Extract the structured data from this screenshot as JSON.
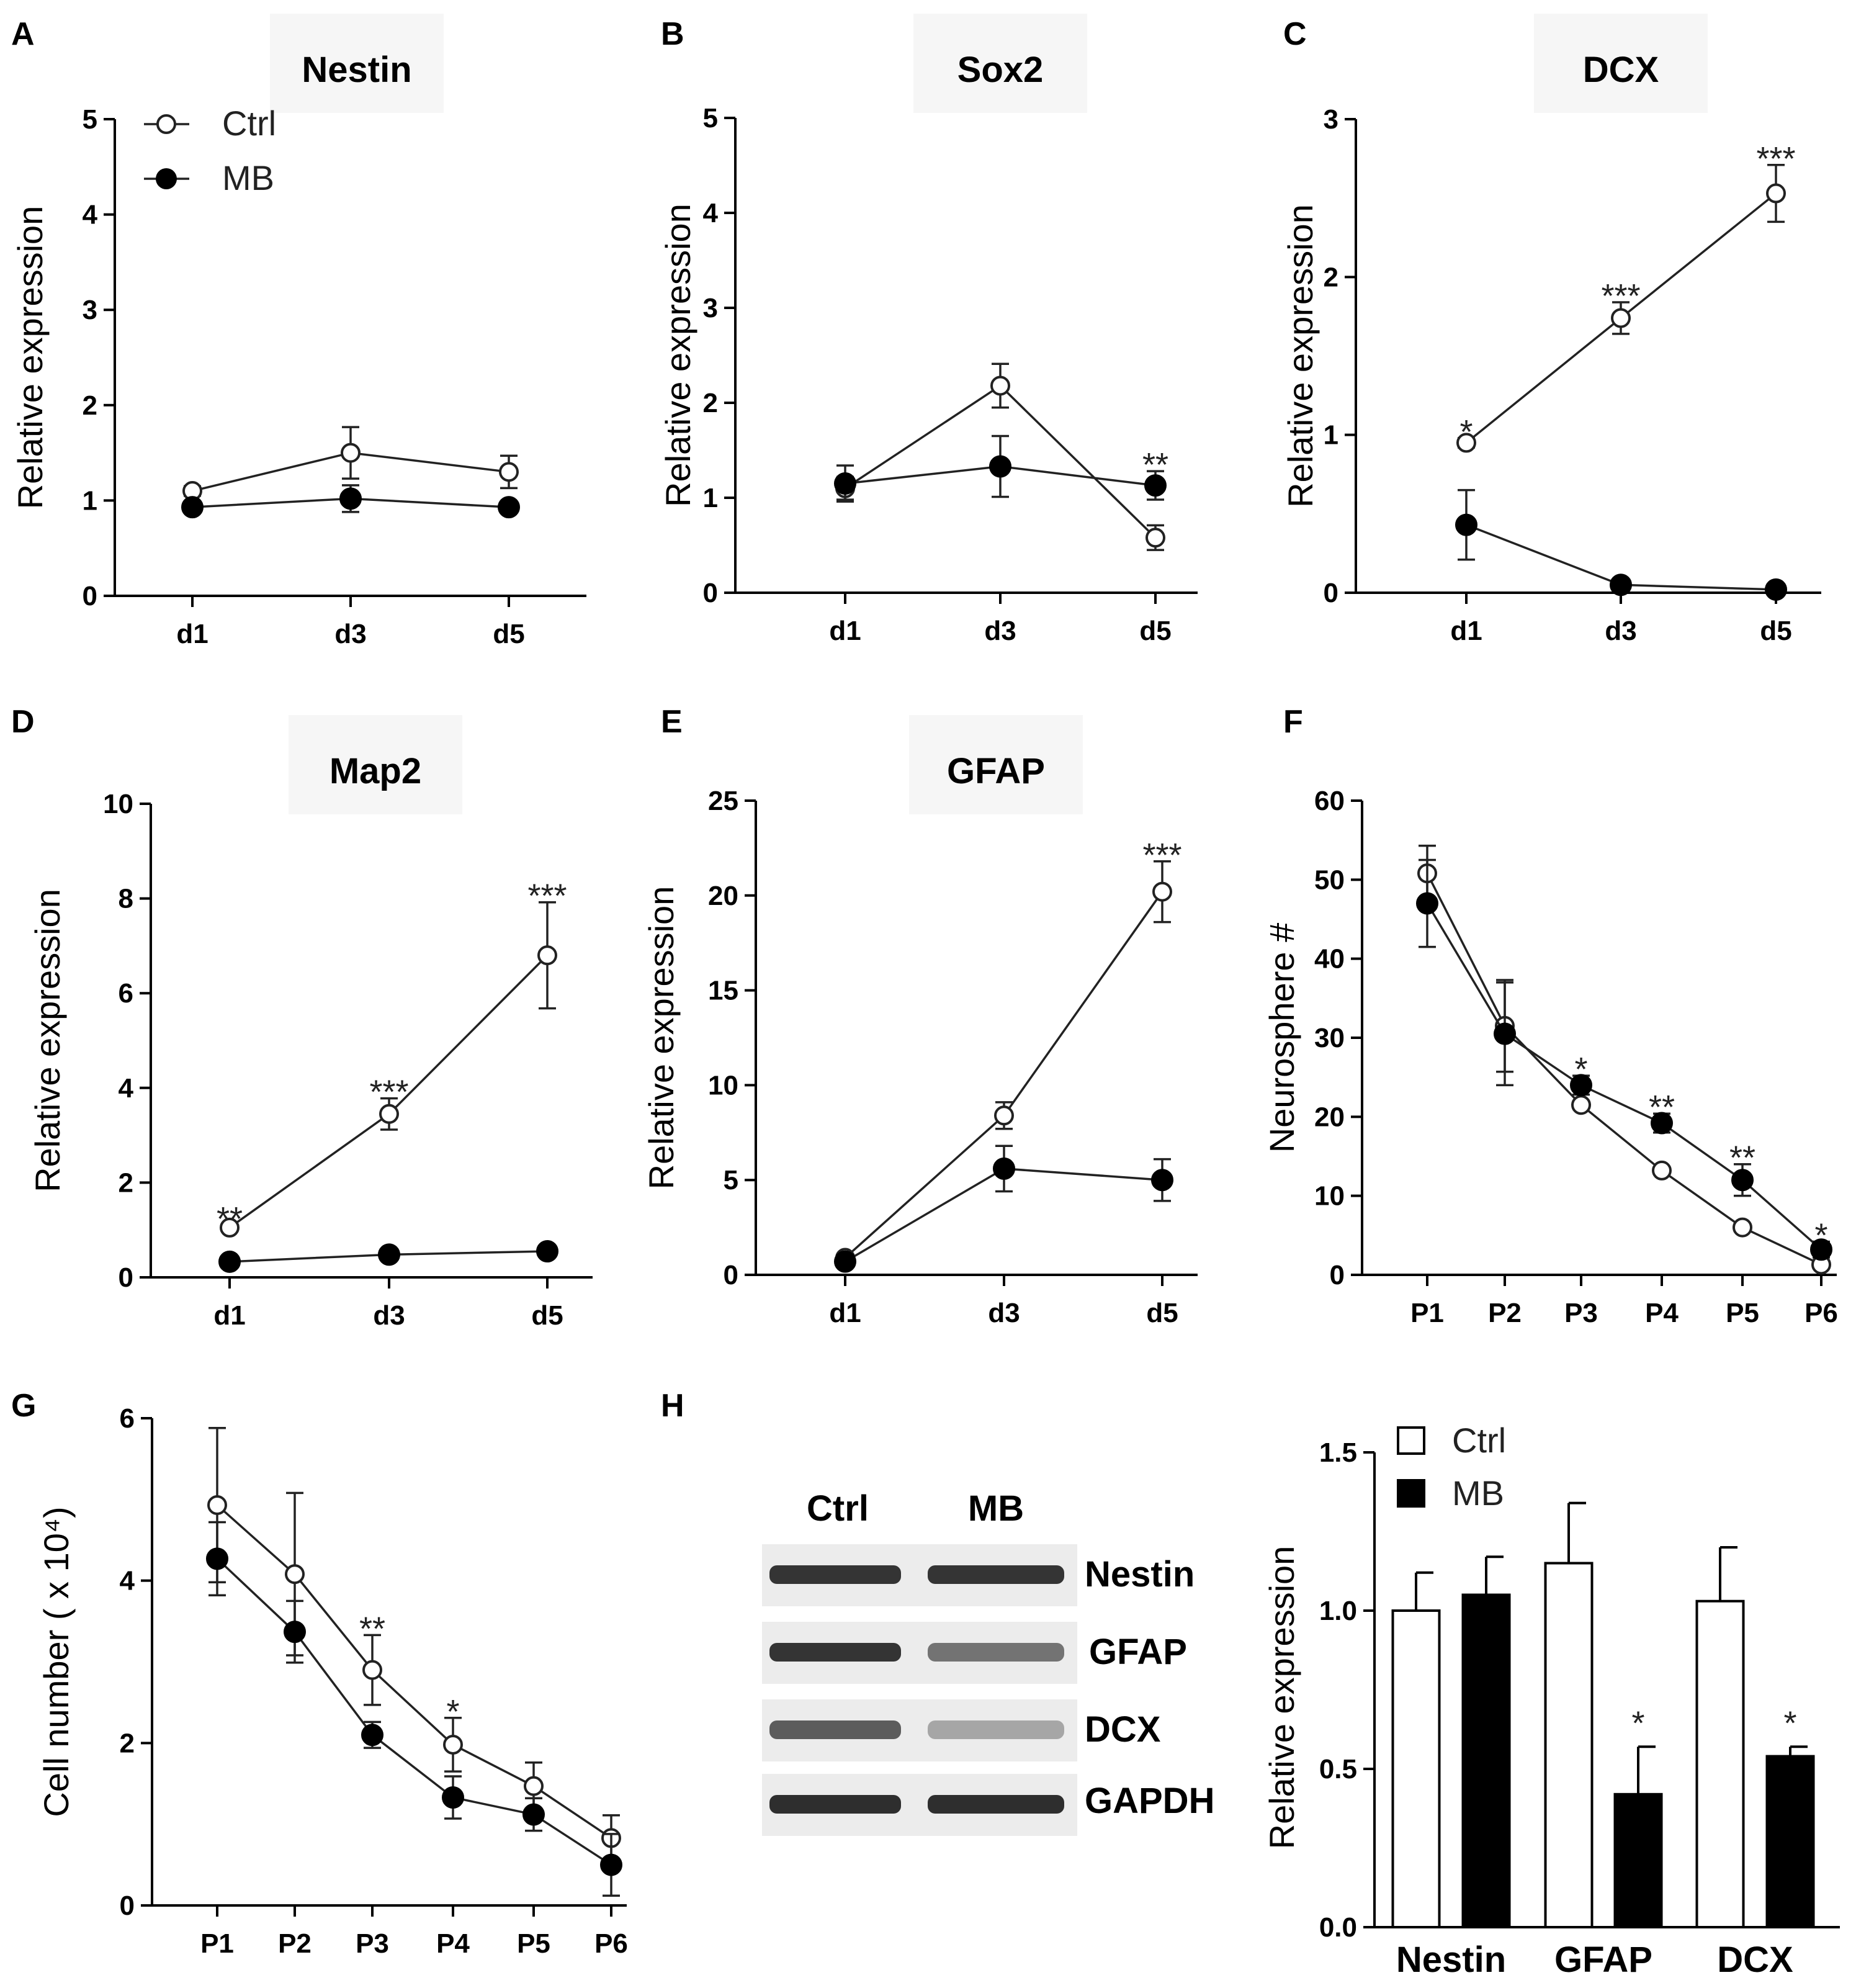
{
  "chart_data": [
    {
      "panel": "A",
      "type": "line",
      "title": "Nestin",
      "ylabel": "Relative expression",
      "xlabel": "",
      "categories": [
        "d1",
        "d3",
        "d5"
      ],
      "ylim": [
        0,
        5
      ],
      "yticks": [
        "0",
        "1",
        "2",
        "3",
        "4",
        "5"
      ],
      "legend": {
        "position": "top-left",
        "entries": [
          "Ctrl",
          "MB"
        ]
      },
      "series": [
        {
          "name": "Ctrl",
          "marker": "open-circle",
          "values": [
            1.1,
            1.5,
            1.3
          ],
          "errors": [
            0.05,
            0.27,
            0.17
          ]
        },
        {
          "name": "MB",
          "marker": "filled-diamond",
          "values": [
            0.93,
            1.02,
            0.93
          ],
          "errors": [
            0.03,
            0.14,
            0.03
          ]
        }
      ],
      "annotations": []
    },
    {
      "panel": "B",
      "type": "line",
      "title": "Sox2",
      "ylabel": "Relative expression",
      "xlabel": "",
      "categories": [
        "d1",
        "d3",
        "d5"
      ],
      "ylim": [
        0,
        5
      ],
      "yticks": [
        "0",
        "1",
        "2",
        "3",
        "4",
        "5"
      ],
      "series": [
        {
          "name": "Ctrl",
          "marker": "open-circle",
          "values": [
            1.1,
            2.18,
            0.58
          ],
          "errors": [
            0.12,
            0.23,
            0.13
          ]
        },
        {
          "name": "MB",
          "marker": "filled-diamond",
          "values": [
            1.15,
            1.33,
            1.13
          ],
          "errors": [
            0.19,
            0.32,
            0.15
          ]
        }
      ],
      "annotations": [
        {
          "category": "d5",
          "text": "**"
        }
      ]
    },
    {
      "panel": "C",
      "type": "line",
      "title": "DCX",
      "ylabel": "Relative expression",
      "xlabel": "",
      "categories": [
        "d1",
        "d3",
        "d5"
      ],
      "ylim": [
        0,
        3
      ],
      "yticks": [
        "0",
        "1",
        "2",
        "3"
      ],
      "series": [
        {
          "name": "Ctrl",
          "marker": "open-circle",
          "values": [
            0.95,
            1.74,
            2.53
          ],
          "errors": [
            0.03,
            0.1,
            0.18
          ]
        },
        {
          "name": "MB",
          "marker": "filled-diamond",
          "values": [
            0.43,
            0.05,
            0.02
          ],
          "errors": [
            0.22,
            0.02,
            0.01
          ]
        }
      ],
      "annotations": [
        {
          "category": "d1",
          "text": "*"
        },
        {
          "category": "d3",
          "text": "***"
        },
        {
          "category": "d5",
          "text": "***"
        }
      ]
    },
    {
      "panel": "D",
      "type": "line",
      "title": "Map2",
      "ylabel": "Relative expression",
      "xlabel": "",
      "categories": [
        "d1",
        "d3",
        "d5"
      ],
      "ylim": [
        0,
        10
      ],
      "yticks": [
        "0",
        "2",
        "4",
        "6",
        "8",
        "10"
      ],
      "series": [
        {
          "name": "Ctrl",
          "marker": "open-circle",
          "values": [
            1.05,
            3.45,
            6.8
          ],
          "errors": [
            0.05,
            0.33,
            1.12
          ]
        },
        {
          "name": "MB",
          "marker": "filled-diamond",
          "values": [
            0.33,
            0.48,
            0.55
          ],
          "errors": [
            0.03,
            0.03,
            0.03
          ]
        }
      ],
      "annotations": [
        {
          "category": "d1",
          "text": "**"
        },
        {
          "category": "d3",
          "text": "***"
        },
        {
          "category": "d5",
          "text": "***"
        }
      ]
    },
    {
      "panel": "E",
      "type": "line",
      "title": "GFAP",
      "ylabel": "Relative expression",
      "xlabel": "",
      "categories": [
        "d1",
        "d3",
        "d5"
      ],
      "ylim": [
        0,
        25
      ],
      "yticks": [
        "0",
        "5",
        "10",
        "15",
        "20",
        "25"
      ],
      "series": [
        {
          "name": "Ctrl",
          "marker": "open-circle",
          "values": [
            0.9,
            8.4,
            20.2
          ],
          "errors": [
            0.1,
            0.7,
            1.6
          ]
        },
        {
          "name": "MB",
          "marker": "filled-diamond",
          "values": [
            0.7,
            5.6,
            5.0
          ],
          "errors": [
            0.1,
            1.2,
            1.1
          ]
        }
      ],
      "annotations": [
        {
          "category": "d5",
          "text": "***"
        }
      ]
    },
    {
      "panel": "F",
      "type": "line",
      "title": "",
      "ylabel": "Neurosphere #",
      "xlabel": "",
      "categories": [
        "P1",
        "P2",
        "P3",
        "P4",
        "P5",
        "P6"
      ],
      "ylim": [
        0,
        60
      ],
      "yticks": [
        "0",
        "10",
        "20",
        "30",
        "40",
        "50",
        "60"
      ],
      "series": [
        {
          "name": "Ctrl",
          "marker": "open-circle",
          "values": [
            50.8,
            31.5,
            21.5,
            13.2,
            6.0,
            1.3
          ],
          "errors": [
            3.5,
            5.8,
            0.5,
            0.3,
            0.3,
            0.3
          ]
        },
        {
          "name": "MB",
          "marker": "filled-diamond",
          "values": [
            47.0,
            30.5,
            24.0,
            19.2,
            12.0,
            3.2
          ],
          "errors": [
            5.5,
            6.5,
            1.2,
            1.2,
            2.0,
            1.0
          ]
        }
      ],
      "annotations": [
        {
          "category": "P3",
          "text": "*"
        },
        {
          "category": "P4",
          "text": "**"
        },
        {
          "category": "P5",
          "text": "**"
        },
        {
          "category": "P6",
          "text": "*"
        }
      ]
    },
    {
      "panel": "G",
      "type": "line",
      "title": "",
      "ylabel": "Cell number ( x 10⁴)",
      "xlabel": "",
      "categories": [
        "P1",
        "P2",
        "P3",
        "P4",
        "P5",
        "P6"
      ],
      "ylim": [
        0,
        6
      ],
      "yticks": [
        "0",
        "2",
        "4",
        "6"
      ],
      "series": [
        {
          "name": "Ctrl",
          "marker": "open-circle",
          "values": [
            4.93,
            4.08,
            2.9,
            1.98,
            1.47,
            0.83
          ],
          "errors": [
            0.95,
            1.0,
            0.43,
            0.33,
            0.29,
            0.28
          ]
        },
        {
          "name": "MB",
          "marker": "filled-diamond",
          "values": [
            4.27,
            3.37,
            2.1,
            1.33,
            1.12,
            0.5
          ],
          "errors": [
            0.45,
            0.38,
            0.16,
            0.26,
            0.2,
            0.38
          ]
        }
      ],
      "annotations": [
        {
          "category": "P3",
          "text": "**"
        },
        {
          "category": "P4",
          "text": "*"
        }
      ]
    },
    {
      "panel": "H",
      "type": "bar",
      "title": "",
      "ylabel": "Relative expression",
      "xlabel": "",
      "categories": [
        "Nestin",
        "GFAP",
        "DCX"
      ],
      "ylim": [
        0,
        1.5
      ],
      "yticks": [
        "0.0",
        "0.5",
        "1.0",
        "1.5"
      ],
      "legend": {
        "position": "top-left",
        "entries": [
          "Ctrl",
          "MB"
        ]
      },
      "series": [
        {
          "name": "Ctrl",
          "fill": "#ffffff",
          "values": [
            1.0,
            1.15,
            1.03
          ],
          "errors": [
            0.12,
            0.19,
            0.17
          ]
        },
        {
          "name": "MB",
          "fill": "#000000",
          "values": [
            1.05,
            0.42,
            0.54
          ],
          "errors": [
            0.12,
            0.15,
            0.03
          ]
        }
      ],
      "annotations": [
        {
          "category": "GFAP",
          "series": "MB",
          "text": "*"
        },
        {
          "category": "DCX",
          "series": "MB",
          "text": "*"
        }
      ]
    }
  ],
  "blot": {
    "columns": [
      "Ctrl",
      "MB"
    ],
    "bands": [
      {
        "label": "Nestin",
        "intensity": [
          0.92,
          0.92
        ]
      },
      {
        "label": "GFAP",
        "intensity": [
          0.92,
          0.6
        ]
      },
      {
        "label": "DCX",
        "intensity": [
          0.72,
          0.35
        ]
      },
      {
        "label": "GAPDH",
        "intensity": [
          0.95,
          0.95
        ]
      }
    ]
  },
  "colors": {
    "axis": "#000000",
    "line": "#222222",
    "ctrl_fill": "#ffffff",
    "mb_fill": "#000000",
    "blot_bg": "#ececec"
  }
}
